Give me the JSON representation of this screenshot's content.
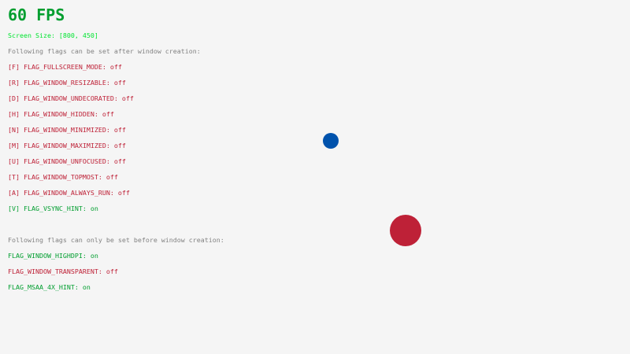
{
  "fps": "60 FPS",
  "screen_size": "Screen Size: [800, 450]",
  "after_header": "Following flags can be set after window creation:",
  "after_flags": [
    {
      "label": "[F] FLAG_FULLSCREEN_MODE: ",
      "value": "off",
      "enabled": false
    },
    {
      "label": "[R] FLAG_WINDOW_RESIZABLE: ",
      "value": "off",
      "enabled": false
    },
    {
      "label": "[D] FLAG_WINDOW_UNDECORATED: ",
      "value": "off",
      "enabled": false
    },
    {
      "label": "[H] FLAG_WINDOW_HIDDEN: ",
      "value": "off",
      "enabled": false
    },
    {
      "label": "[N] FLAG_WINDOW_MINIMIZED: ",
      "value": "off",
      "enabled": false
    },
    {
      "label": "[M] FLAG_WINDOW_MAXIMIZED: ",
      "value": "off",
      "enabled": false
    },
    {
      "label": "[U] FLAG_WINDOW_UNFOCUSED: ",
      "value": "off",
      "enabled": false
    },
    {
      "label": "[T] FLAG_WINDOW_TOPMOST: ",
      "value": "off",
      "enabled": false
    },
    {
      "label": "[A] FLAG_WINDOW_ALWAYS_RUN: ",
      "value": "off",
      "enabled": false
    },
    {
      "label": "[V] FLAG_VSYNC_HINT: ",
      "value": "on",
      "enabled": true
    }
  ],
  "before_header": "Following flags can only be set before window creation:",
  "before_flags": [
    {
      "label": "FLAG_WINDOW_HIGHDPI: ",
      "value": "on",
      "enabled": true
    },
    {
      "label": "FLAG_WINDOW_TRANSPARENT: ",
      "value": "off",
      "enabled": false
    },
    {
      "label": "FLAG_MSAA_4X_HINT: ",
      "value": "on",
      "enabled": true
    }
  ],
  "colors": {
    "background": "#f5f5f5",
    "fps": "#009e2f",
    "screen_size": "#00e430",
    "header": "#828282",
    "on": "#009e2f",
    "off": "#be2137",
    "small_ball": "#0052ac",
    "large_ball": "#be2137"
  }
}
